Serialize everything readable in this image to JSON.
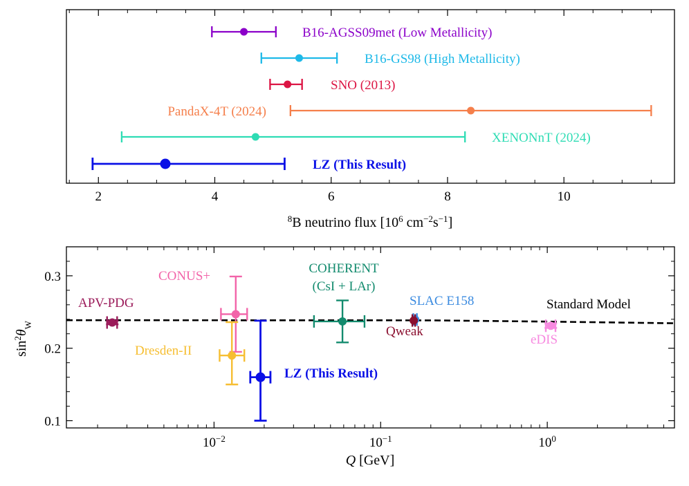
{
  "chart_data": [
    {
      "type": "errorbar",
      "orientation": "horizontal",
      "xlabel_super": "8",
      "xlabel_main": "B neutrino flux [10",
      "xlabel_exp1": "6",
      "xlabel_mid": " cm",
      "xlabel_exp2": "−2",
      "xlabel_s": "s",
      "xlabel_exp3": "−1",
      "xlabel_end": "]",
      "xlim": [
        1.45,
        11.9
      ],
      "xticks": [
        2,
        4,
        6,
        8,
        10
      ],
      "xtick_labels": [
        "2",
        "4",
        "6",
        "8",
        "10"
      ],
      "series": [
        {
          "name": "B16-AGSS09met (Low Metallicity)",
          "value": 4.5,
          "low": 3.95,
          "high": 5.05,
          "color": "#8B00C9"
        },
        {
          "name": "B16-GS98 (High Metallicity)",
          "value": 5.45,
          "low": 4.8,
          "high": 6.1,
          "color": "#1EB9E8"
        },
        {
          "name": "SNO (2013)",
          "value": 5.25,
          "low": 4.95,
          "high": 5.5,
          "color": "#DC1443"
        },
        {
          "name": "PandaX-4T (2024)",
          "value": 8.4,
          "low": 5.3,
          "high": 11.5,
          "color": "#F57F4B"
        },
        {
          "name": "XENONnT (2024)",
          "value": 4.7,
          "low": 2.4,
          "high": 8.3,
          "color": "#2EDCB4"
        },
        {
          "name": "LZ (This Result)",
          "value": 3.15,
          "low": 1.9,
          "high": 5.2,
          "color": "#0A10E6"
        }
      ]
    },
    {
      "type": "errorbar",
      "xscale": "log",
      "xlabel_var": "Q",
      "xlabel_unit": " [GeV]",
      "ylabel_main": "sin",
      "ylabel_sup": "2",
      "ylabel_theta": "θ",
      "ylabel_sub": "W",
      "xlim": [
        0.0013,
        5.8
      ],
      "ylim": [
        0.09,
        0.34
      ],
      "yticks": [
        0.1,
        0.2,
        0.3
      ],
      "ytick_labels": [
        "0.1",
        "0.2",
        "0.3"
      ],
      "xticks": [
        0.01,
        0.1,
        1
      ],
      "xtick_base": "10",
      "xtick_exps": [
        "−2",
        "−1",
        "0"
      ],
      "standard_model": {
        "label": "Standard Model",
        "color": "#000000",
        "points": [
          [
            0.0013,
            0.2387
          ],
          [
            0.05,
            0.2386
          ],
          [
            0.2,
            0.2385
          ],
          [
            1,
            0.2368
          ],
          [
            5.8,
            0.2345
          ]
        ]
      },
      "series": [
        {
          "name": "APV-PDG",
          "x": 0.00245,
          "y": 0.2355,
          "yerr": 0.0025,
          "xlow": 0.00228,
          "xhigh": 0.00262,
          "color": "#9B1B5A"
        },
        {
          "name": "CONUS+",
          "x": 0.0135,
          "y": 0.247,
          "ylow": 0.195,
          "yhigh": 0.299,
          "xlow": 0.011,
          "xhigh": 0.0158,
          "color": "#F264A9"
        },
        {
          "name": "Dresden-II",
          "x": 0.0128,
          "y": 0.19,
          "ylow": 0.15,
          "yhigh": 0.236,
          "xlow": 0.0108,
          "xhigh": 0.0152,
          "color": "#F6BE32"
        },
        {
          "name": "LZ (This Result)",
          "x": 0.019,
          "y": 0.16,
          "ylow": 0.1,
          "yhigh": 0.238,
          "xlow": 0.0165,
          "xhigh": 0.0218,
          "color": "#0A10E6"
        },
        {
          "name_line1": "COHERENT",
          "name_line2": "(CsI + LAr)",
          "x": 0.059,
          "y": 0.237,
          "ylow": 0.208,
          "yhigh": 0.266,
          "xlow": 0.0398,
          "xhigh": 0.08,
          "color": "#138B6E"
        },
        {
          "name": "SLAC E158",
          "x": 0.161,
          "y": 0.2397,
          "yerr": 0.0013,
          "xlow": 0.157,
          "xhigh": 0.165,
          "color": "#3B8BE0"
        },
        {
          "name": "Qweak",
          "x": 0.158,
          "y": 0.2383,
          "yerr": 0.0011,
          "xlow": 0.155,
          "xhigh": 0.161,
          "color": "#8B1030"
        },
        {
          "name": "eDIS",
          "x": 1.05,
          "y": 0.231,
          "yerr": 0.003,
          "xlow": 0.98,
          "xhigh": 1.12,
          "color": "#F78AE0"
        }
      ]
    }
  ]
}
